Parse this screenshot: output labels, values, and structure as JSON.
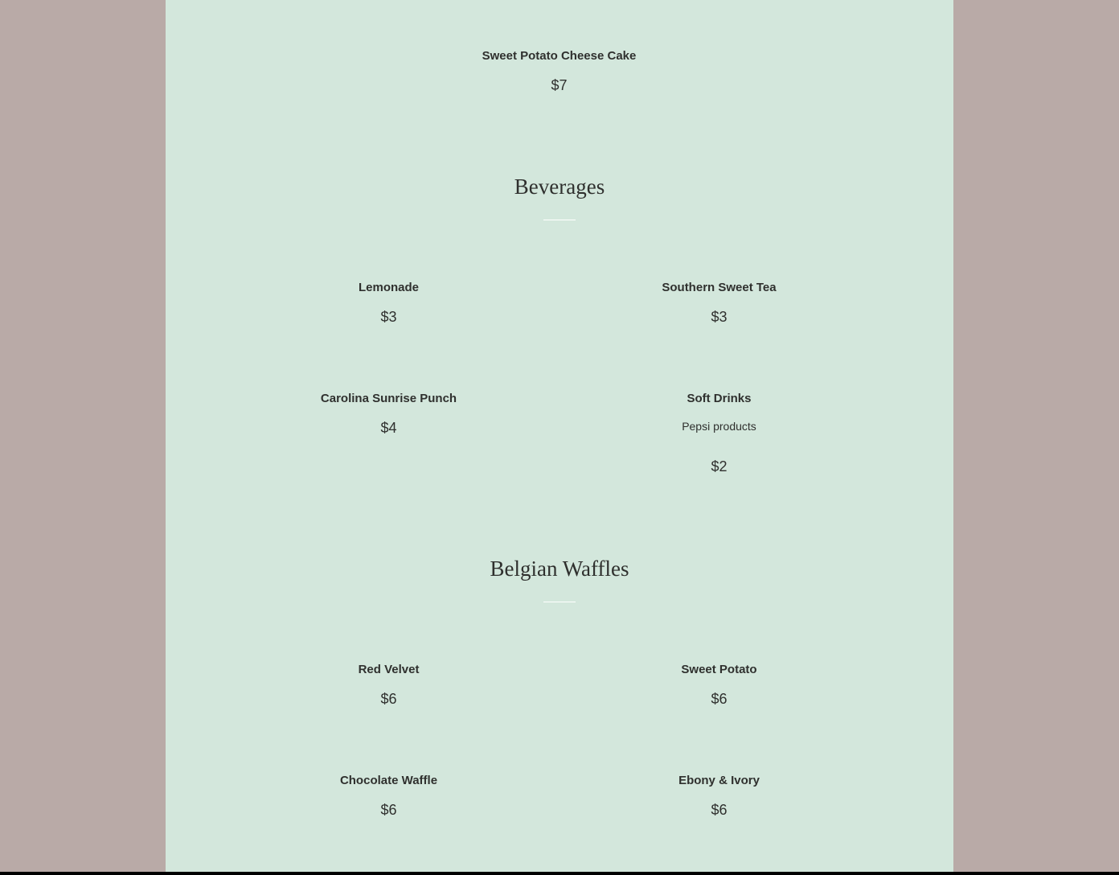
{
  "top_item": {
    "name": "Sweet Potato Cheese Cake",
    "price": "$7"
  },
  "beverages": {
    "title": "Beverages",
    "items": [
      {
        "name": "Lemonade",
        "price": "$3"
      },
      {
        "name": "Southern Sweet Tea",
        "price": "$3"
      },
      {
        "name": "Carolina Sunrise Punch",
        "price": "$4"
      },
      {
        "name": "Soft Drinks",
        "description": "Pepsi products",
        "price": "$2"
      }
    ]
  },
  "waffles": {
    "title": "Belgian Waffles",
    "items": [
      {
        "name": "Red Velvet",
        "price": "$6"
      },
      {
        "name": "Sweet Potato",
        "price": "$6"
      },
      {
        "name": "Chocolate Waffle",
        "price": "$6"
      },
      {
        "name": "Ebony & Ivory",
        "price": "$6"
      }
    ]
  },
  "colors": {
    "background": "#b9aaa7",
    "panel": "#d3e7dc",
    "text": "#2f302e"
  }
}
